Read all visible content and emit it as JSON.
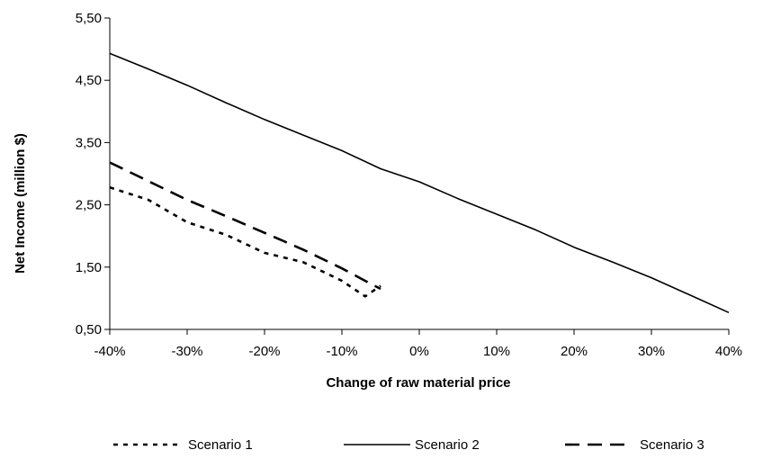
{
  "chart_data": {
    "type": "line",
    "title": "",
    "xlabel": "Change of raw material price",
    "ylabel": "Net Income (million $)",
    "x_ticks": [
      -40,
      -30,
      -20,
      -10,
      0,
      10,
      20,
      30,
      40
    ],
    "x_tick_labels": [
      "-40%",
      "-30%",
      "-20%",
      "-10%",
      "0%",
      "10%",
      "20%",
      "30%",
      "40%"
    ],
    "xlim": [
      -40,
      40
    ],
    "y_ticks": [
      0.5,
      1.5,
      2.5,
      3.5,
      4.5,
      5.5
    ],
    "y_tick_labels": [
      "0,50",
      "1,50",
      "2,50",
      "3,50",
      "4,50",
      "5,50"
    ],
    "ylim": [
      0.5,
      5.5
    ],
    "grid": false,
    "legend_position": "bottom",
    "series": [
      {
        "name": "Scenario 1",
        "style": "dotted",
        "color": "#000000",
        "points": [
          [
            -40,
            2.78
          ],
          [
            -35,
            2.58
          ],
          [
            -30,
            2.22
          ],
          [
            -25,
            2.02
          ],
          [
            -20,
            1.73
          ],
          [
            -15,
            1.58
          ],
          [
            -10,
            1.28
          ],
          [
            -7,
            1.03
          ],
          [
            -5,
            1.2
          ]
        ]
      },
      {
        "name": "Scenario 2",
        "style": "solid",
        "color": "#000000",
        "points": [
          [
            -40,
            4.93
          ],
          [
            -35,
            4.68
          ],
          [
            -30,
            4.42
          ],
          [
            -25,
            4.14
          ],
          [
            -20,
            3.87
          ],
          [
            -15,
            3.62
          ],
          [
            -10,
            3.37
          ],
          [
            -5,
            3.08
          ],
          [
            0,
            2.87
          ],
          [
            5,
            2.6
          ],
          [
            10,
            2.35
          ],
          [
            15,
            2.1
          ],
          [
            20,
            1.82
          ],
          [
            25,
            1.58
          ],
          [
            30,
            1.33
          ],
          [
            35,
            1.05
          ],
          [
            40,
            0.77
          ]
        ]
      },
      {
        "name": "Scenario 3",
        "style": "dashed",
        "color": "#000000",
        "points": [
          [
            -40,
            3.18
          ],
          [
            -35,
            2.88
          ],
          [
            -30,
            2.58
          ],
          [
            -25,
            2.32
          ],
          [
            -20,
            2.05
          ],
          [
            -15,
            1.78
          ],
          [
            -10,
            1.48
          ],
          [
            -7,
            1.28
          ],
          [
            -5,
            1.15
          ]
        ]
      }
    ]
  }
}
